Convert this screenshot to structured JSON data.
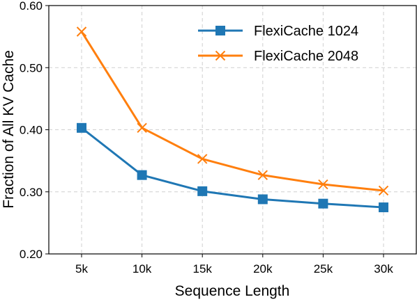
{
  "chart_data": {
    "type": "line",
    "xlabel": "Sequence Length",
    "ylabel": "Fraction of All KV Cache",
    "categories": [
      "5k",
      "10k",
      "15k",
      "20k",
      "25k",
      "30k"
    ],
    "ylim": [
      0.2,
      0.6
    ],
    "yticks": [
      "0.20",
      "0.30",
      "0.40",
      "0.50",
      "0.60"
    ],
    "grid": true,
    "legend_position": "top-right",
    "series": [
      {
        "name": "FlexiCache 1024",
        "color": "#1f77b4",
        "marker": "square",
        "values": [
          0.403,
          0.327,
          0.301,
          0.288,
          0.281,
          0.275
        ]
      },
      {
        "name": "FlexiCache 2048",
        "color": "#ff7f0e",
        "marker": "x",
        "values": [
          0.558,
          0.403,
          0.353,
          0.327,
          0.312,
          0.302
        ]
      }
    ]
  }
}
